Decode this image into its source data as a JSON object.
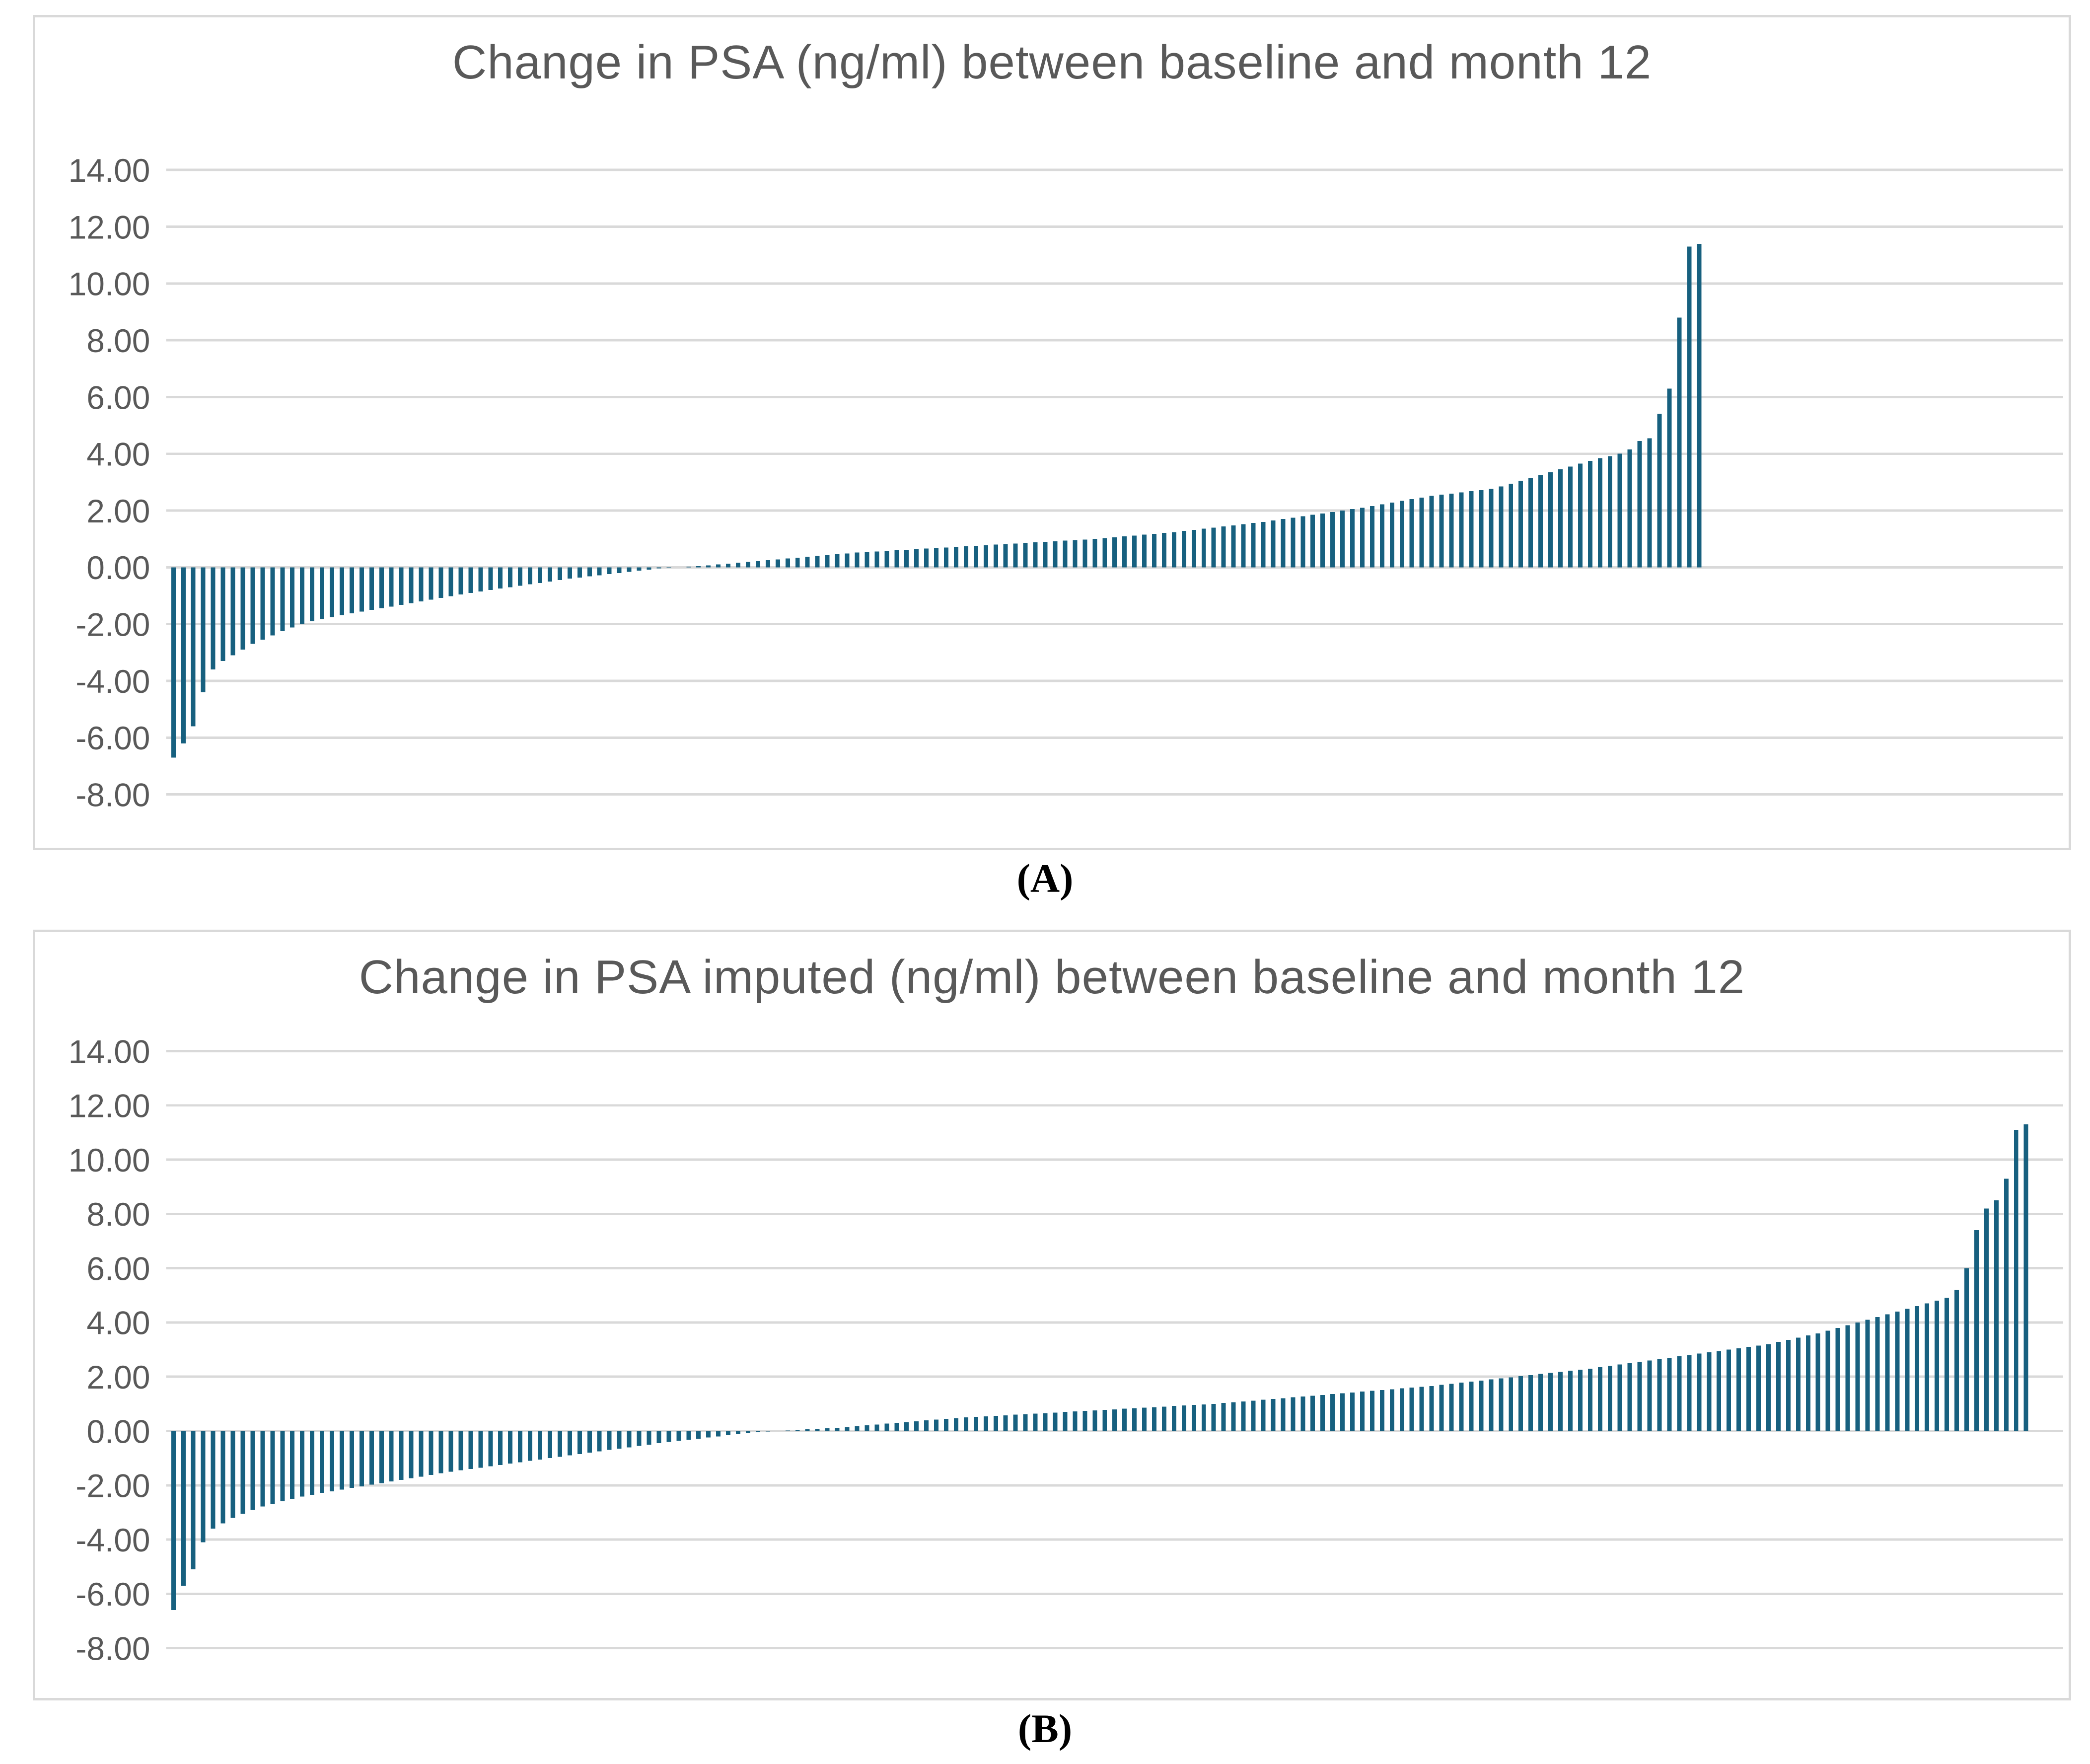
{
  "figure": {
    "panels": [
      {
        "id": "A",
        "caption": "(A)"
      },
      {
        "id": "B",
        "caption": "(B)"
      }
    ],
    "colors": {
      "bar": "#17607F",
      "gridline": "#D9D9D9",
      "border": "#D9D9D9",
      "axis_label": "#595959",
      "title": "#595959",
      "caption": "#000000",
      "background": "#FFFFFF"
    }
  },
  "chart_data": [
    {
      "type": "bar",
      "title": "Change in PSA (ng/ml) between baseline and month 12",
      "xlabel": "",
      "ylabel": "",
      "ylim": [
        -8,
        14
      ],
      "ytick_step": 2,
      "ytick_labels": [
        "14.00",
        "12.00",
        "10.00",
        "8.00",
        "6.00",
        "4.00",
        "2.00",
        "0.00",
        "-2.00",
        "-4.00",
        "-6.00",
        "-8.00"
      ],
      "grid": true,
      "legend": false,
      "n_bars": 155,
      "values": [
        -6.7,
        -6.2,
        -5.6,
        -4.4,
        -3.6,
        -3.3,
        -3.1,
        -2.9,
        -2.7,
        -2.55,
        -2.4,
        -2.25,
        -2.12,
        -2.0,
        -1.9,
        -1.82,
        -1.75,
        -1.68,
        -1.62,
        -1.56,
        -1.5,
        -1.44,
        -1.38,
        -1.32,
        -1.26,
        -1.2,
        -1.14,
        -1.08,
        -1.02,
        -0.96,
        -0.9,
        -0.85,
        -0.8,
        -0.75,
        -0.7,
        -0.65,
        -0.6,
        -0.55,
        -0.5,
        -0.45,
        -0.4,
        -0.36,
        -0.32,
        -0.28,
        -0.24,
        -0.2,
        -0.16,
        -0.12,
        -0.08,
        -0.04,
        -0.02,
        0.0,
        0.02,
        0.04,
        0.07,
        0.1,
        0.13,
        0.16,
        0.19,
        0.22,
        0.25,
        0.28,
        0.31,
        0.34,
        0.37,
        0.4,
        0.43,
        0.46,
        0.49,
        0.52,
        0.54,
        0.56,
        0.58,
        0.6,
        0.62,
        0.64,
        0.66,
        0.68,
        0.7,
        0.72,
        0.74,
        0.76,
        0.78,
        0.8,
        0.82,
        0.84,
        0.86,
        0.88,
        0.9,
        0.92,
        0.94,
        0.96,
        0.98,
        1.0,
        1.03,
        1.06,
        1.09,
        1.12,
        1.15,
        1.18,
        1.21,
        1.24,
        1.28,
        1.32,
        1.36,
        1.4,
        1.44,
        1.48,
        1.52,
        1.56,
        1.6,
        1.65,
        1.7,
        1.75,
        1.8,
        1.85,
        1.9,
        1.95,
        2.0,
        2.05,
        2.1,
        2.16,
        2.22,
        2.28,
        2.34,
        2.4,
        2.46,
        2.52,
        2.56,
        2.6,
        2.64,
        2.68,
        2.72,
        2.76,
        2.85,
        2.95,
        3.05,
        3.15,
        3.25,
        3.35,
        3.45,
        3.55,
        3.65,
        3.75,
        3.85,
        3.92,
        4.0,
        4.15,
        4.45,
        4.55,
        5.4,
        6.3,
        8.8,
        11.3,
        11.4
      ]
    },
    {
      "type": "bar",
      "title": "Change in PSA imputed (ng/ml) between baseline and month 12",
      "xlabel": "",
      "ylabel": "",
      "ylim": [
        -8,
        14
      ],
      "ytick_step": 2,
      "ytick_labels": [
        "14.00",
        "12.00",
        "10.00",
        "8.00",
        "6.00",
        "4.00",
        "2.00",
        "0.00",
        "-2.00",
        "-4.00",
        "-6.00",
        "-8.00"
      ],
      "grid": true,
      "legend": false,
      "n_bars": 188,
      "values": [
        -6.6,
        -5.7,
        -5.1,
        -4.1,
        -3.6,
        -3.4,
        -3.2,
        -3.05,
        -2.9,
        -2.78,
        -2.68,
        -2.58,
        -2.5,
        -2.42,
        -2.35,
        -2.28,
        -2.22,
        -2.16,
        -2.1,
        -2.04,
        -1.98,
        -1.92,
        -1.86,
        -1.8,
        -1.74,
        -1.68,
        -1.62,
        -1.56,
        -1.5,
        -1.45,
        -1.4,
        -1.35,
        -1.3,
        -1.25,
        -1.2,
        -1.15,
        -1.1,
        -1.05,
        -1.0,
        -0.95,
        -0.9,
        -0.85,
        -0.8,
        -0.75,
        -0.7,
        -0.65,
        -0.6,
        -0.55,
        -0.5,
        -0.45,
        -0.4,
        -0.36,
        -0.32,
        -0.28,
        -0.24,
        -0.2,
        -0.16,
        -0.12,
        -0.08,
        -0.05,
        -0.02,
        0.0,
        0.02,
        0.04,
        0.06,
        0.08,
        0.1,
        0.12,
        0.15,
        0.18,
        0.21,
        0.24,
        0.27,
        0.3,
        0.33,
        0.36,
        0.39,
        0.42,
        0.45,
        0.48,
        0.5,
        0.52,
        0.54,
        0.56,
        0.58,
        0.6,
        0.62,
        0.64,
        0.66,
        0.68,
        0.7,
        0.72,
        0.74,
        0.76,
        0.78,
        0.8,
        0.82,
        0.84,
        0.86,
        0.88,
        0.9,
        0.92,
        0.94,
        0.96,
        0.98,
        1.0,
        1.03,
        1.06,
        1.09,
        1.12,
        1.15,
        1.18,
        1.21,
        1.24,
        1.27,
        1.3,
        1.33,
        1.36,
        1.39,
        1.42,
        1.45,
        1.48,
        1.51,
        1.54,
        1.57,
        1.6,
        1.63,
        1.66,
        1.7,
        1.74,
        1.78,
        1.82,
        1.86,
        1.9,
        1.94,
        1.98,
        2.02,
        2.06,
        2.1,
        2.14,
        2.18,
        2.22,
        2.26,
        2.3,
        2.35,
        2.4,
        2.45,
        2.5,
        2.55,
        2.6,
        2.65,
        2.7,
        2.75,
        2.8,
        2.85,
        2.9,
        2.95,
        3.0,
        3.05,
        3.1,
        3.15,
        3.2,
        3.28,
        3.36,
        3.44,
        3.52,
        3.6,
        3.7,
        3.8,
        3.9,
        4.0,
        4.1,
        4.2,
        4.3,
        4.4,
        4.5,
        4.6,
        4.7,
        4.8,
        4.9,
        5.2,
        6.0,
        7.4,
        8.2,
        8.5,
        9.3,
        11.1,
        11.3
      ]
    }
  ]
}
